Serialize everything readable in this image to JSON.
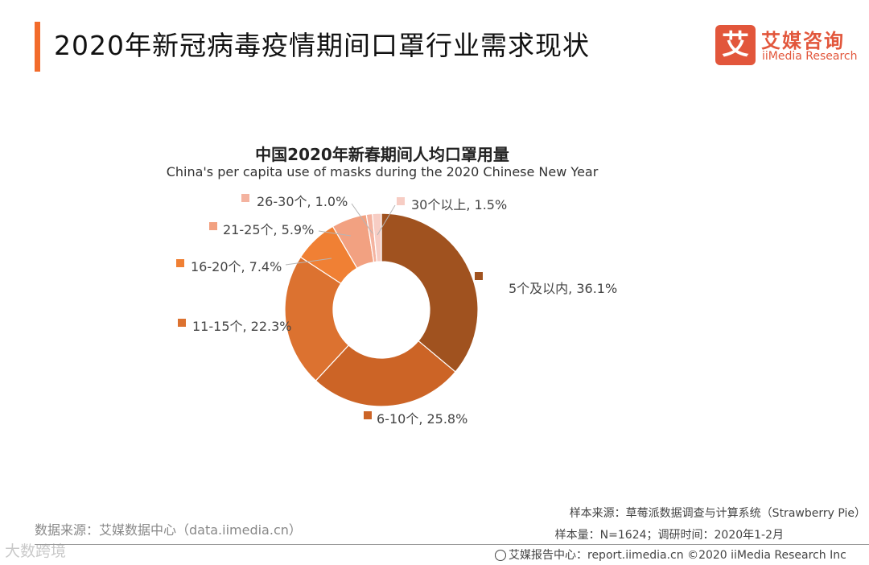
{
  "page": {
    "title": "2020年新冠病毒疫情期间口罩行业需求现状"
  },
  "logo": {
    "mark": "艾",
    "cn": "艾媒咨询",
    "en": "iiMedia Research",
    "color": "#e2563b"
  },
  "footer": {
    "data_source": "数据来源：艾媒数据中心（data.iimedia.cn）",
    "sample_source": "样本来源：草莓派数据调查与计算系统（Strawberry Pie）",
    "sample_meta": "样本量：N=1624；调研时间：2020年1-2月",
    "report": "艾媒报告中心：report.iimedia.cn ©2020 iiMedia Research Inc",
    "watermark": "大数跨境",
    "report_icon": "globe-icon"
  },
  "chart_data": {
    "type": "pie",
    "style": "donut",
    "title": "中国2020年新春期间人均口罩用量",
    "subtitle": "China's per capita use of masks during the 2020 Chinese New Year",
    "slices": [
      {
        "label": "5个及以内",
        "value": 36.1,
        "display": "5个及以内, 36.1%",
        "color": "#a0521f"
      },
      {
        "label": "6-10个",
        "value": 25.8,
        "display": "6-10个, 25.8%",
        "color": "#cc6426"
      },
      {
        "label": "11-15个",
        "value": 22.3,
        "display": "11-15个, 22.3%",
        "color": "#dc7230"
      },
      {
        "label": "16-20个",
        "value": 7.4,
        "display": "16-20个, 7.4%",
        "color": "#f08034"
      },
      {
        "label": "21-25个",
        "value": 5.9,
        "display": "21-25个, 5.9%",
        "color": "#f2a181"
      },
      {
        "label": "26-30个",
        "value": 1.0,
        "display": "26-30个, 1.0%",
        "color": "#f4b3a0"
      },
      {
        "label": "30个以上",
        "value": 1.5,
        "display": "30个以上, 1.5%",
        "color": "#f7cdc4"
      }
    ],
    "legend_placement": "labels beside slices"
  }
}
